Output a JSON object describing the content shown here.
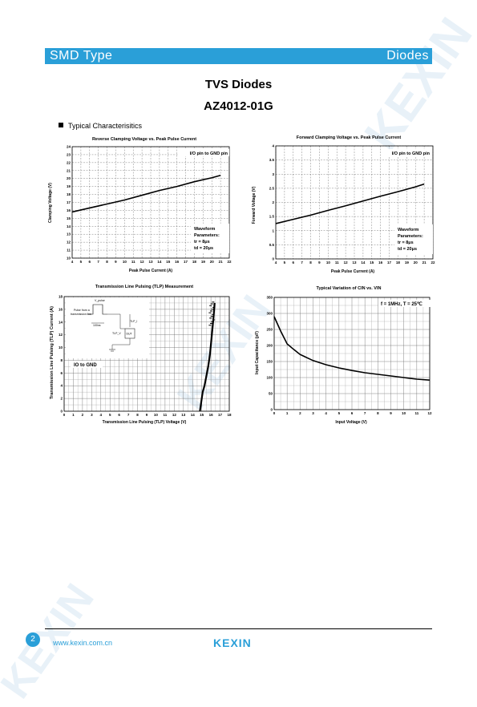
{
  "header": {
    "left": "SMD Type",
    "right": "Diodes",
    "accent_color": "#2a9fd8"
  },
  "title": "TVS Diodes",
  "part_number": "AZ4012-01G",
  "section_heading": "Typical  Characterisitics",
  "watermark": "KEXIN",
  "footer": {
    "page": "2",
    "url": "www.kexin.com.cn",
    "logo": "KEXIN"
  },
  "chart_data": [
    {
      "type": "line",
      "title": "Reverse Clamping Voltage vs. Peak Pulse Current",
      "xlabel": "Peak Pulse Current (A)",
      "ylabel": "Clamping Voltage (V)",
      "xlim": [
        4,
        22
      ],
      "ylim": [
        10,
        24
      ],
      "xticks": [
        "4",
        "5",
        "6",
        "7",
        "8",
        "9",
        "10",
        "11",
        "12",
        "13",
        "14",
        "15",
        "16",
        "17",
        "18",
        "19",
        "20",
        "21",
        "22"
      ],
      "yticks": [
        "10",
        "11",
        "12",
        "13",
        "14",
        "15",
        "16",
        "17",
        "18",
        "19",
        "20",
        "21",
        "22",
        "23",
        "24"
      ],
      "annotation": "I/O pin to GND pin",
      "note": [
        "Waveform",
        "Parameters:",
        "tr = 8μs",
        "td = 20μs"
      ],
      "x": [
        4,
        6,
        8,
        10,
        12,
        14,
        16,
        18,
        20,
        21
      ],
      "y": [
        15.8,
        16.3,
        16.8,
        17.3,
        17.9,
        18.5,
        19.0,
        19.6,
        20.1,
        20.4
      ]
    },
    {
      "type": "line",
      "title": "Forward Clamping Voltage vs. Peak Pulse Current",
      "xlabel": "Peak Pulse Current (A)",
      "ylabel": "Forward Voltage (V)",
      "xlim": [
        4,
        22
      ],
      "ylim": [
        0,
        4
      ],
      "xticks": [
        "4",
        "5",
        "6",
        "7",
        "8",
        "9",
        "10",
        "11",
        "12",
        "13",
        "14",
        "15",
        "16",
        "17",
        "18",
        "19",
        "20",
        "21",
        "22"
      ],
      "yticks": [
        "0",
        "0.5",
        "1",
        "1.5",
        "2",
        "2.5",
        "3",
        "3.5",
        "4"
      ],
      "annotation": "I/O pin to GND pin",
      "note": [
        "Waveform",
        "Parameters:",
        "tr = 8μs",
        "td = 20μs"
      ],
      "x": [
        4,
        6,
        8,
        10,
        12,
        14,
        16,
        18,
        20,
        21
      ],
      "y": [
        1.25,
        1.4,
        1.55,
        1.72,
        1.88,
        2.05,
        2.22,
        2.38,
        2.55,
        2.65
      ]
    },
    {
      "type": "line",
      "title": "Transmission Line Pulsing (TLP) Measurement",
      "xlabel": "Transmission Line Pulsing (TLP) Voltage (V)",
      "ylabel": "Transmission Line Pulsing (TLP) Current (A)",
      "xlim": [
        0,
        18
      ],
      "ylim": [
        0,
        18
      ],
      "xticks": [
        "0",
        "1",
        "2",
        "3",
        "4",
        "5",
        "6",
        "7",
        "8",
        "9",
        "10",
        "11",
        "12",
        "13",
        "14",
        "15",
        "16",
        "17",
        "18"
      ],
      "yticks": [
        "0",
        "2",
        "4",
        "6",
        "8",
        "10",
        "12",
        "14",
        "16",
        "18"
      ],
      "annotation": "IO to GND",
      "inset_labels": [
        "V_pulse",
        "Pulse from a",
        "transmission line",
        "100ns",
        "TLP_I",
        "TLP_V",
        "DUT"
      ],
      "x": [
        14.8,
        14.9,
        15.0,
        15.1,
        15.3,
        15.5,
        15.7,
        15.9,
        16.0,
        16.1,
        16.2,
        16.3,
        16.4
      ],
      "y": [
        0,
        1,
        2,
        3,
        4,
        5.5,
        7,
        9,
        10.5,
        12,
        13.5,
        15,
        17
      ]
    },
    {
      "type": "line",
      "title": "Typical Variation of CIN vs. VIN",
      "xlabel": "Input Voltage (V)",
      "ylabel": "Input Capacitance (pF)",
      "xlim": [
        0,
        12
      ],
      "ylim": [
        0,
        350
      ],
      "xticks": [
        "0",
        "1",
        "2",
        "3",
        "4",
        "5",
        "6",
        "7",
        "8",
        "9",
        "10",
        "11",
        "12"
      ],
      "yticks": [
        "0",
        "50",
        "100",
        "150",
        "200",
        "250",
        "300",
        "350"
      ],
      "annotation": "f = 1MHz, T = 25℃",
      "x": [
        0,
        0.5,
        1,
        1.5,
        2,
        3,
        4,
        5,
        6,
        7,
        8,
        9,
        10,
        11,
        12
      ],
      "y": [
        290,
        245,
        205,
        188,
        172,
        153,
        140,
        130,
        122,
        115,
        110,
        105,
        100,
        95,
        92
      ]
    }
  ]
}
